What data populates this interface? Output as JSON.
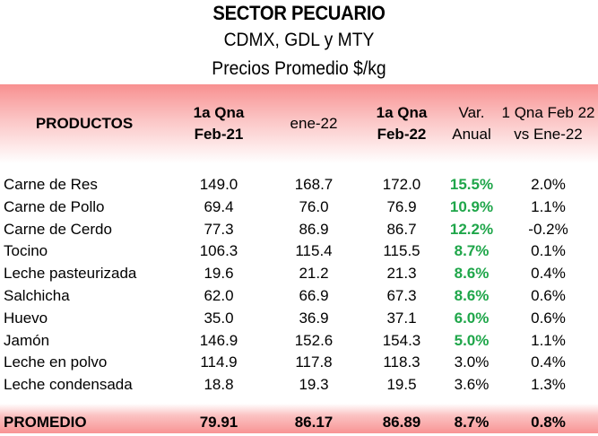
{
  "title": {
    "line1": "SECTOR PECUARIO",
    "line2": "CDMX, GDL y MTY",
    "line3": "Precios Promedio $/kg"
  },
  "header": {
    "productos": "PRODUCTOS",
    "col1_line1": "1a Qna",
    "col1_line2": "Feb-21",
    "col2": "ene-22",
    "col3_line1": "1a Qna",
    "col3_line2": "Feb-22",
    "col4_line1": "Var.",
    "col4_line2": "Anual",
    "col5_line1": "1 Qna Feb 22",
    "col5_line2": "vs Ene-22"
  },
  "rows": [
    {
      "name": "Carne de Res",
      "feb21": "149.0",
      "ene22": "168.7",
      "feb22": "172.0",
      "var": "15.5%",
      "vs": "2.0%"
    },
    {
      "name": "Carne de Pollo",
      "feb21": "69.4",
      "ene22": "76.0",
      "feb22": "76.9",
      "var": "10.9%",
      "vs": "1.1%"
    },
    {
      "name": "Carne de Cerdo",
      "feb21": "77.3",
      "ene22": "86.9",
      "feb22": "86.7",
      "var": "12.2%",
      "vs": "-0.2%"
    },
    {
      "name": "Tocino",
      "feb21": "106.3",
      "ene22": "115.4",
      "feb22": "115.5",
      "var": "8.7%",
      "vs": "0.1%"
    },
    {
      "name": "Leche pasteurizada",
      "feb21": "19.6",
      "ene22": "21.2",
      "feb22": "21.3",
      "var": "8.6%",
      "vs": "0.4%"
    },
    {
      "name": "Salchicha",
      "feb21": "62.0",
      "ene22": "66.9",
      "feb22": "67.3",
      "var": "8.6%",
      "vs": "0.6%"
    },
    {
      "name": "Huevo",
      "feb21": "35.0",
      "ene22": "36.9",
      "feb22": "37.1",
      "var": "6.0%",
      "vs": "0.6%"
    },
    {
      "name": "Jamón",
      "feb21": "146.9",
      "ene22": "152.6",
      "feb22": "154.3",
      "var": "5.0%",
      "vs": "1.1%"
    },
    {
      "name": "Leche en polvo",
      "feb21": "114.9",
      "ene22": "117.8",
      "feb22": "118.3",
      "var": "3.0%",
      "vs": "0.4%"
    },
    {
      "name": "Leche condensada",
      "feb21": "18.8",
      "ene22": "19.3",
      "feb22": "19.5",
      "var": "3.6%",
      "vs": "1.3%"
    }
  ],
  "footer": {
    "name": "PROMEDIO",
    "feb21": "79.91",
    "ene22": "86.17",
    "feb22": "86.89",
    "var": "8.7%",
    "vs": "0.8%"
  },
  "colors": {
    "highlight_green": "#1fa64a",
    "header_red": "#f89090"
  }
}
